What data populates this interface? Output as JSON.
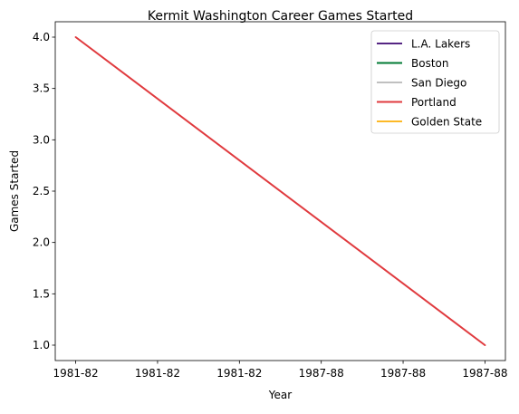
{
  "chart_data": {
    "type": "line",
    "title": "Kermit Washington Career Games Started",
    "xlabel": "Year",
    "ylabel": "Games Started",
    "x_tick_labels": [
      "1981-82",
      "1981-82",
      "1981-82",
      "1987-88",
      "1987-88",
      "1987-88"
    ],
    "y_tick_labels": [
      "1.0",
      "1.5",
      "2.0",
      "2.5",
      "3.0",
      "3.5",
      "4.0"
    ],
    "y_ticks": [
      1.0,
      1.5,
      2.0,
      2.5,
      3.0,
      3.5,
      4.0
    ],
    "xlim": [
      -0.25,
      5.25
    ],
    "ylim": [
      0.85,
      4.15
    ],
    "grid": false,
    "legend_position": "top-right",
    "series": [
      {
        "name": "L.A. Lakers",
        "color": "#552583",
        "x": [],
        "y": []
      },
      {
        "name": "Boston",
        "color": "#007A33",
        "x": [],
        "y": []
      },
      {
        "name": "San Diego",
        "color": "#C0C0C0",
        "x": [],
        "y": []
      },
      {
        "name": "Portland",
        "color": "#E03A3E",
        "x": [
          0,
          5
        ],
        "y": [
          4.0,
          1.0
        ]
      },
      {
        "name": "Golden State",
        "color": "#FDB927",
        "x": [],
        "y": []
      }
    ]
  }
}
